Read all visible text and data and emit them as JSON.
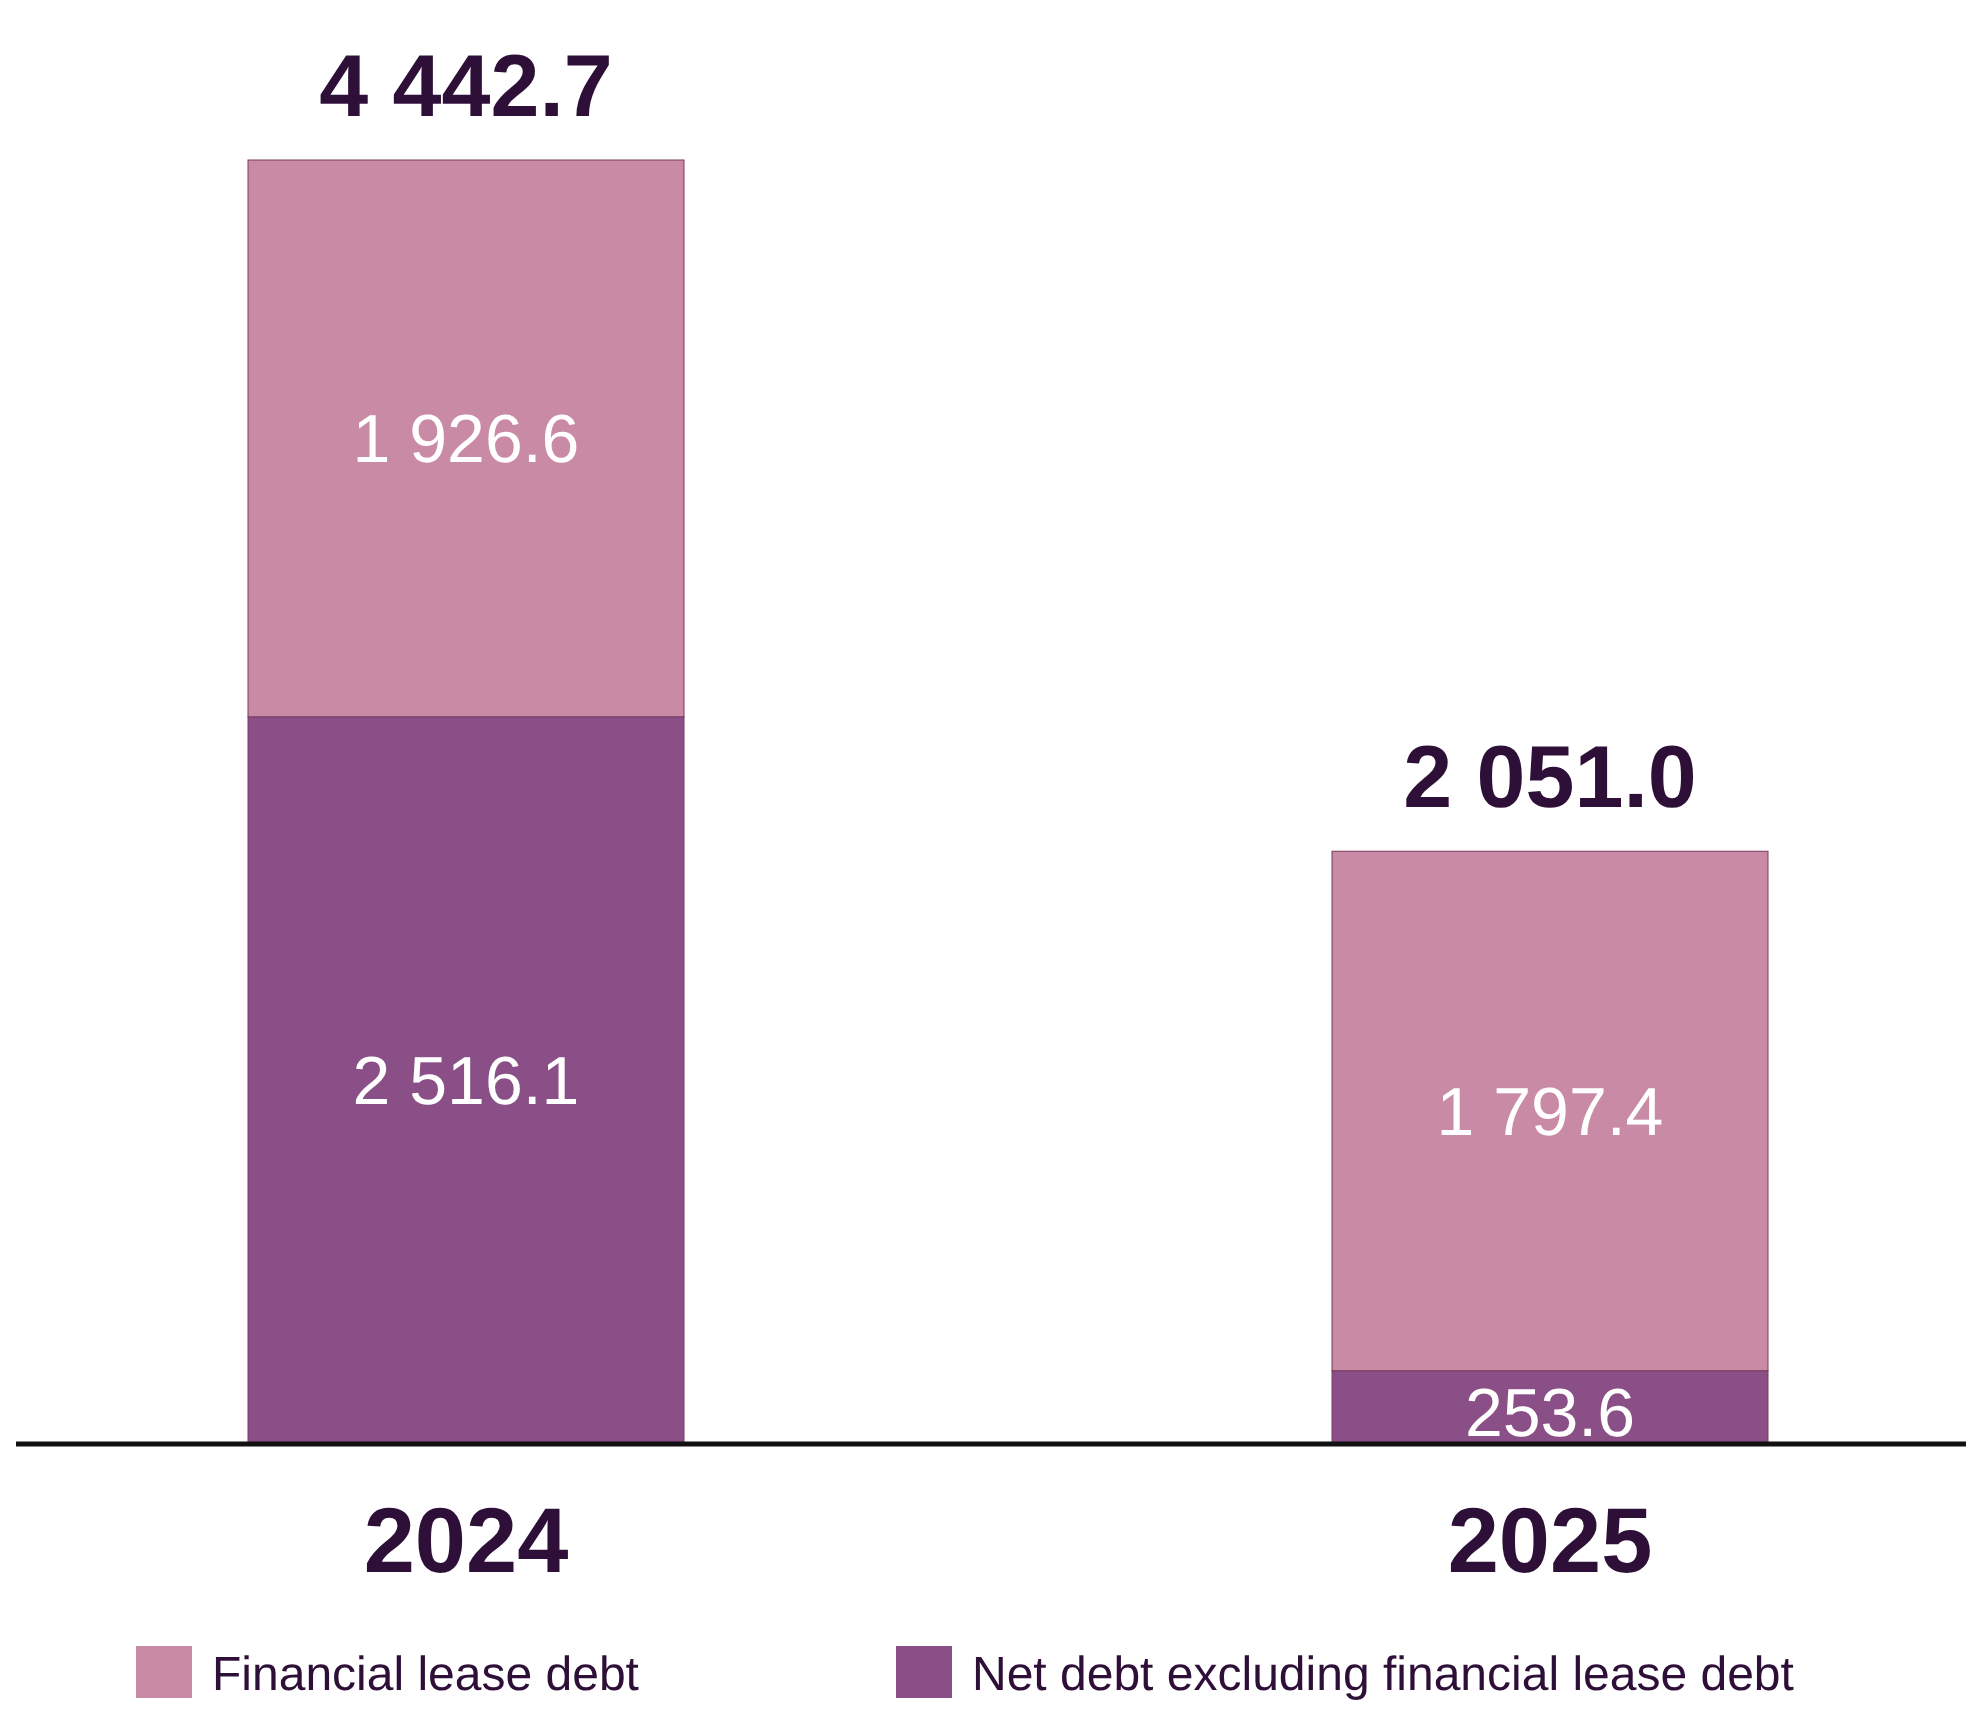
{
  "chart_data": {
    "type": "bar",
    "stacked": true,
    "categories": [
      "2024",
      "2025"
    ],
    "series": [
      {
        "name": "Net debt excluding financial lease debt",
        "color": "#8a4f86",
        "values": [
          2516.1,
          253.6
        ],
        "value_labels": [
          "2 516.1",
          "253.6"
        ]
      },
      {
        "name": "Financial lease debt",
        "color": "#c98aa6",
        "values": [
          1926.6,
          1797.4
        ],
        "value_labels": [
          "1 926.6",
          "1 797.4"
        ]
      }
    ],
    "totals": [
      "4 442.7",
      "2 051.0"
    ],
    "ylim": [
      0,
      4442.7
    ],
    "legend": "bottom"
  }
}
